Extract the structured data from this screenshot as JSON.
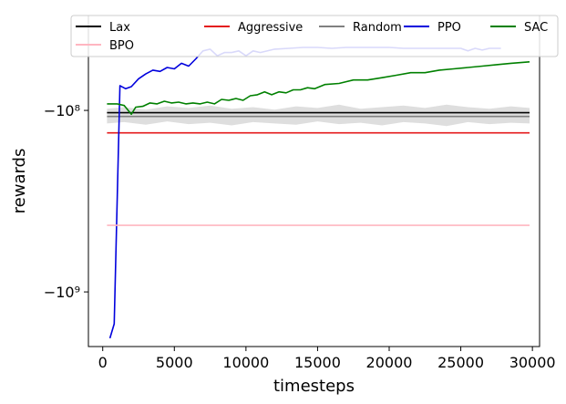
{
  "chart_data": {
    "type": "line",
    "xlabel": "timesteps",
    "ylabel": "rewards",
    "xlim": [
      -1000,
      30500
    ],
    "x_ticks": [
      0,
      5000,
      10000,
      15000,
      20000,
      25000,
      30000
    ],
    "x_tick_labels": [
      "0",
      "5000",
      "10000",
      "15000",
      "20000",
      "25000",
      "30000"
    ],
    "y_scale": "symlog",
    "ylim": [
      -2000000000,
      -30000000
    ],
    "y_ticks": [
      -100000000,
      -1000000000
    ],
    "y_tick_labels": [
      "−10⁸",
      "−10⁹"
    ],
    "legend_placement": "top",
    "series": [
      {
        "name": "Lax",
        "color": "#000000",
        "x": [
          300,
          29800
        ],
        "y": [
          -103000000,
          -103000000
        ]
      },
      {
        "name": "Aggressive",
        "color": "#e41a1c",
        "x": [
          300,
          29800
        ],
        "y": [
          -133000000,
          -133000000
        ]
      },
      {
        "name": "Random",
        "color": "#808080",
        "x": [
          300,
          29800
        ],
        "y": [
          -108000000,
          -108000000
        ],
        "band": {
          "x": [
            300,
            1500,
            3000,
            4500,
            6000,
            7500,
            9000,
            10500,
            12000,
            13500,
            15000,
            16500,
            18000,
            19500,
            21000,
            22500,
            24000,
            25500,
            27000,
            28500,
            29800
          ],
          "lower": [
            -118000000,
            -116000000,
            -120000000,
            -115000000,
            -119000000,
            -117000000,
            -121000000,
            -116000000,
            -118000000,
            -120000000,
            -115000000,
            -119000000,
            -117000000,
            -121000000,
            -116000000,
            -118000000,
            -122000000,
            -116000000,
            -119000000,
            -117000000,
            -118000000
          ],
          "upper": [
            -98000000,
            -96000000,
            -99000000,
            -95000000,
            -97000000,
            -94000000,
            -98000000,
            -96000000,
            -99000000,
            -95000000,
            -97000000,
            -93000000,
            -98000000,
            -96000000,
            -94000000,
            -97000000,
            -93000000,
            -96000000,
            -98000000,
            -95000000,
            -97000000
          ]
        }
      },
      {
        "name": "PPO",
        "color": "#0000dd",
        "x": [
          500,
          800,
          1200,
          1600,
          2000,
          2500,
          3000,
          3500,
          4000,
          4500,
          5000,
          5500,
          6000,
          6500,
          7000,
          7500,
          8000,
          8500,
          9000,
          9500,
          10000,
          10500,
          11000,
          12000,
          13000,
          14000,
          15000,
          16000,
          17000,
          18000,
          19000,
          20000,
          21000,
          22000,
          23000,
          24000,
          25000,
          25500,
          26000,
          26500,
          27000,
          27800
        ],
        "y": [
          -1800000000,
          -1500000000,
          -73000000,
          -76000000,
          -74000000,
          -67000000,
          -63000000,
          -60000000,
          -61000000,
          -58000000,
          -59000000,
          -55000000,
          -57000000,
          -52000000,
          -47000000,
          -46000000,
          -50000000,
          -48000000,
          -48000000,
          -47000000,
          -50000000,
          -47000000,
          -48000000,
          -46000000,
          -45500000,
          -45000000,
          -45000000,
          -45500000,
          -45000000,
          -45000000,
          -45000000,
          -45000000,
          -45500000,
          -45500000,
          -45500000,
          -45500000,
          -45500000,
          -47000000,
          -45500000,
          -46500000,
          -45500000,
          -45500000
        ]
      },
      {
        "name": "SAC",
        "color": "#008000",
        "x": [
          300,
          1000,
          1500,
          2000,
          2300,
          2800,
          3300,
          3800,
          4300,
          4800,
          5300,
          5800,
          6300,
          6800,
          7300,
          7800,
          8300,
          8800,
          9300,
          9800,
          10300,
          10800,
          11300,
          11800,
          12300,
          12800,
          13300,
          13800,
          14300,
          14800,
          15500,
          16500,
          17500,
          18500,
          19500,
          20500,
          21500,
          22500,
          23500,
          24500,
          25500,
          26500,
          27500,
          28500,
          29800
        ],
        "y": [
          -92000000,
          -92000000,
          -94000000,
          -105000000,
          -96000000,
          -95000000,
          -91000000,
          -92000000,
          -89000000,
          -91000000,
          -90000000,
          -92000000,
          -91000000,
          -92000000,
          -90000000,
          -92000000,
          -87000000,
          -88000000,
          -86000000,
          -88000000,
          -83000000,
          -82000000,
          -79000000,
          -82000000,
          -79000000,
          -80000000,
          -77000000,
          -77000000,
          -75000000,
          -76000000,
          -72000000,
          -71000000,
          -68000000,
          -68000000,
          -66000000,
          -64000000,
          -62000000,
          -62000000,
          -60000000,
          -59000000,
          -58000000,
          -57000000,
          -56000000,
          -55000000,
          -54000000
        ]
      },
      {
        "name": "BPO",
        "color": "#ffb6c1",
        "x": [
          300,
          29800
        ],
        "y": [
          -430000000,
          -430000000
        ]
      }
    ]
  }
}
